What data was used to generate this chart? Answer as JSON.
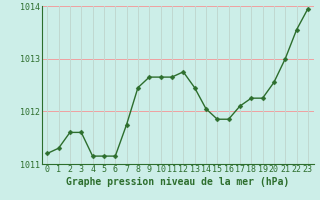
{
  "x": [
    0,
    1,
    2,
    3,
    4,
    5,
    6,
    7,
    8,
    9,
    10,
    11,
    12,
    13,
    14,
    15,
    16,
    17,
    18,
    19,
    20,
    21,
    22,
    23
  ],
  "y": [
    1011.2,
    1011.3,
    1011.6,
    1011.6,
    1011.15,
    1011.15,
    1011.15,
    1011.75,
    1012.45,
    1012.65,
    1012.65,
    1012.65,
    1012.75,
    1012.45,
    1012.05,
    1011.85,
    1011.85,
    1012.1,
    1012.25,
    1012.25,
    1012.55,
    1013.0,
    1013.55,
    1013.95
  ],
  "line_color": "#2d6e2d",
  "marker_color": "#2d6e2d",
  "bg_color": "#cceee8",
  "grid_color_h": "#f0a0a0",
  "grid_color_v": "#c0d8d0",
  "xlabel": "Graphe pression niveau de la mer (hPa)",
  "ylim": [
    1011.0,
    1014.0
  ],
  "xlim": [
    -0.5,
    23.5
  ],
  "yticks": [
    1011,
    1012,
    1013,
    1014
  ],
  "xticks": [
    0,
    1,
    2,
    3,
    4,
    5,
    6,
    7,
    8,
    9,
    10,
    11,
    12,
    13,
    14,
    15,
    16,
    17,
    18,
    19,
    20,
    21,
    22,
    23
  ],
  "tick_color": "#2d6e2d",
  "xlabel_fontsize": 7,
  "tick_fontsize": 6,
  "marker_size": 2.5,
  "line_width": 1.0
}
